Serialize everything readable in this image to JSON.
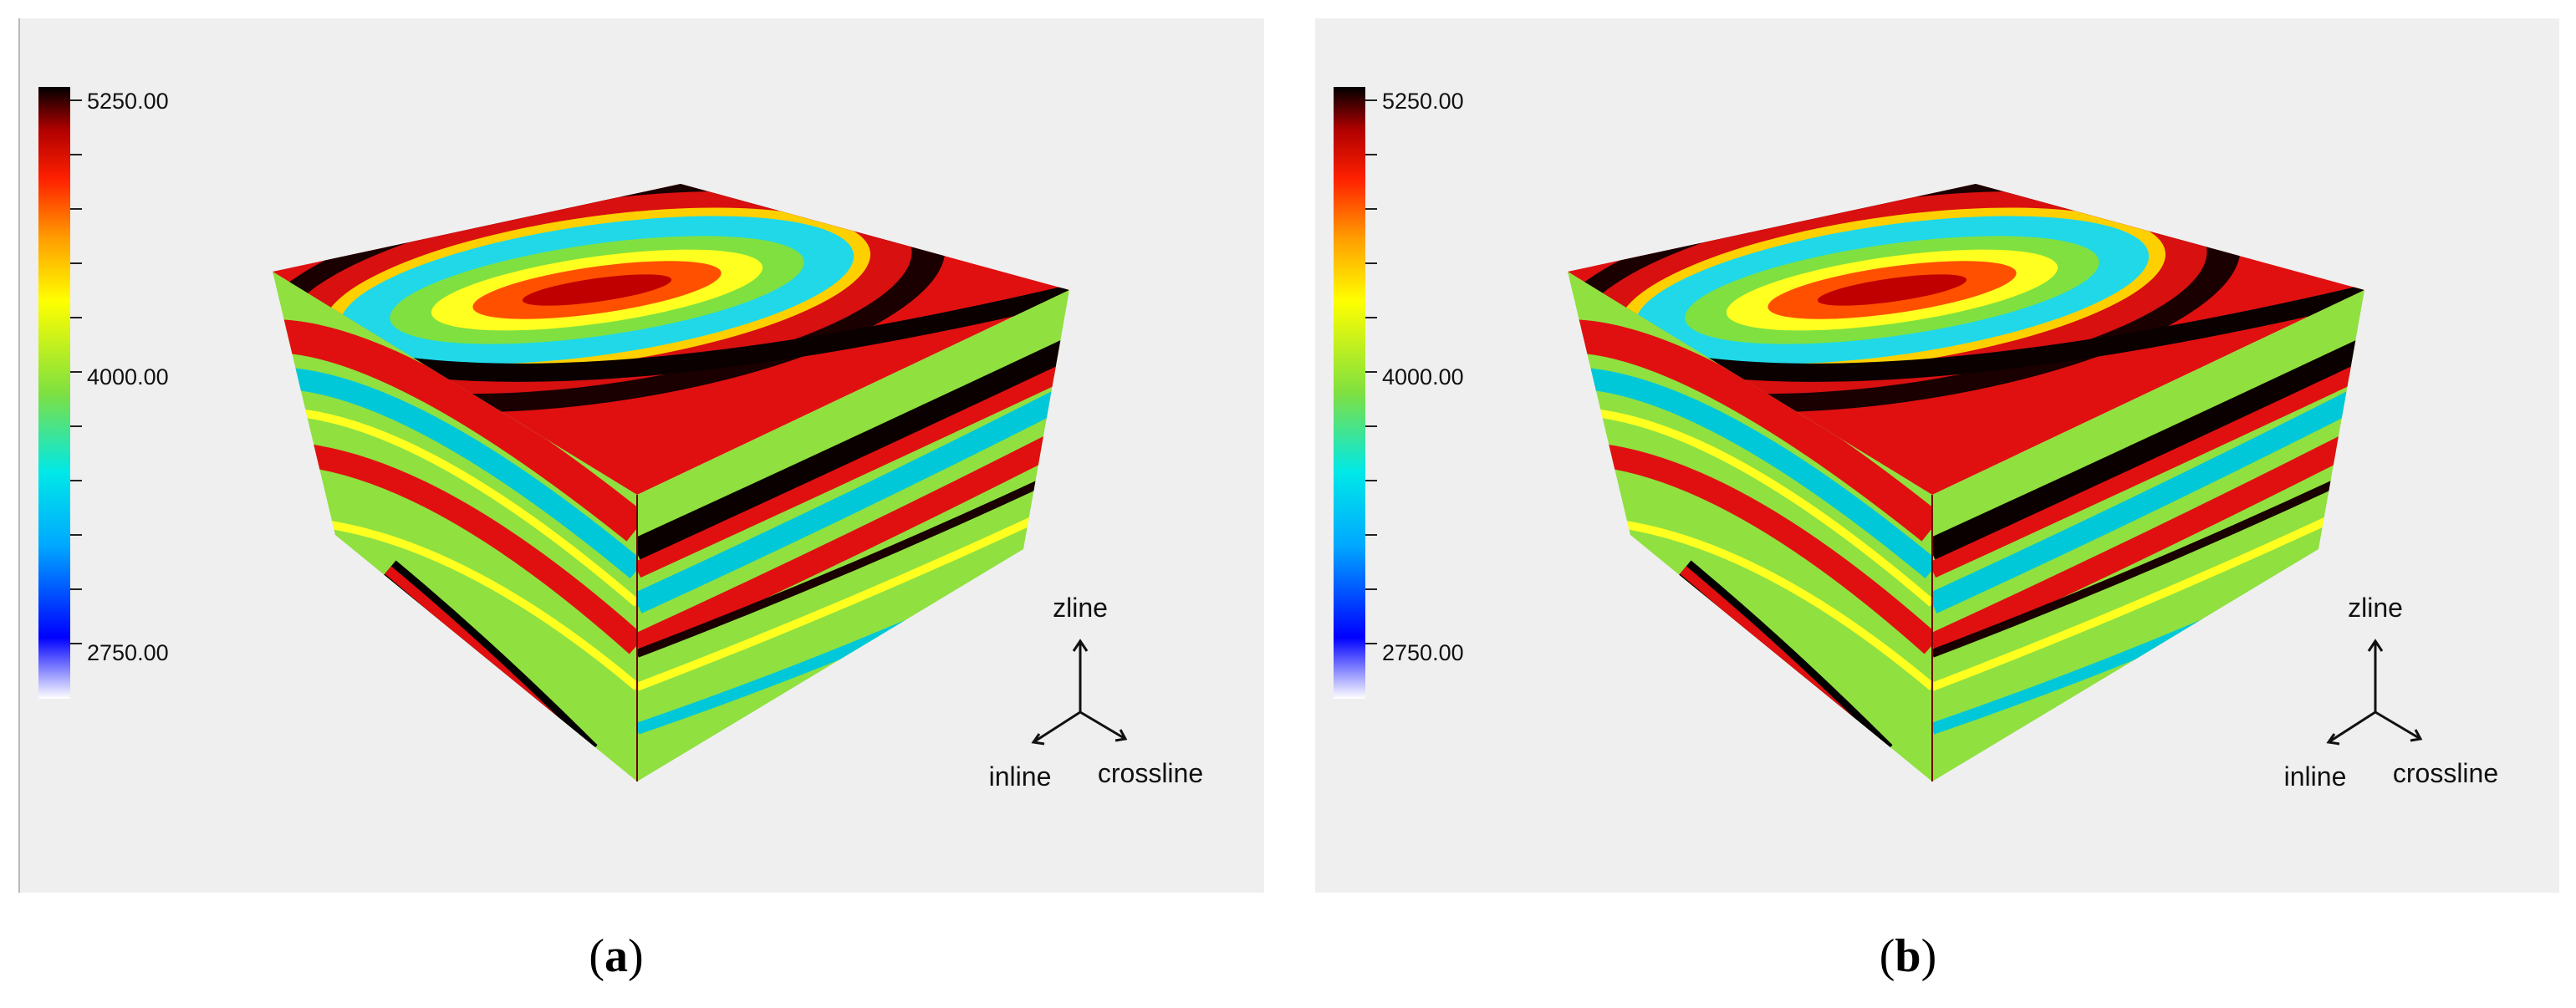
{
  "panels": [
    {
      "caption_open": "(",
      "caption_letter": "a",
      "caption_close": ")",
      "colorbar": {
        "max_label": "5250.00",
        "mid_label": "4000.00",
        "min_label": "2750.00"
      },
      "axes": {
        "up": "zline",
        "left": "inline",
        "right": "crossline"
      }
    },
    {
      "caption_open": "(",
      "caption_letter": "b",
      "caption_close": ")",
      "colorbar": {
        "max_label": "5250.00",
        "mid_label": "4000.00",
        "min_label": "2750.00"
      },
      "axes": {
        "up": "zline",
        "left": "inline",
        "right": "crossline"
      }
    }
  ],
  "colormap": [
    "#f4f4ff",
    "#0000ff",
    "#00a8ff",
    "#00e8e8",
    "#7fe040",
    "#ffff00",
    "#ffa000",
    "#ff2000",
    "#c00000",
    "#000000"
  ]
}
